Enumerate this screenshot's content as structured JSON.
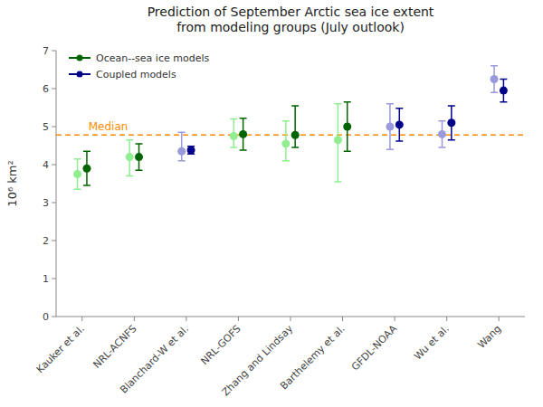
{
  "chart_data": {
    "type": "errorbar",
    "title": "Prediction of September Arctic sea ice extent\nfrom modeling groups (July outlook)",
    "y_label": "10⁶ km²",
    "categories": [
      "Kauker et al.",
      "NRL-ACNFS",
      "Blanchard-W et al.",
      "NRL-GOFS",
      "Zhang and Lindsay",
      "Barthelemy et al.",
      "GFDL-NOAA",
      "Wu et al.",
      "Wang"
    ],
    "ylim": [
      0,
      7
    ],
    "yticks": [
      0,
      1,
      2,
      3,
      4,
      5,
      6,
      7
    ],
    "grid": false,
    "legend": "upper left",
    "marker": "circle",
    "series": [
      {
        "color": "#90EE90",
        "values": [
          3.75,
          4.2,
          null,
          4.75,
          4.55,
          4.65,
          null,
          null,
          null
        ],
        "lower": [
          3.35,
          3.7,
          null,
          4.45,
          4.1,
          3.55,
          null,
          null,
          null
        ],
        "upper": [
          4.15,
          4.65,
          null,
          5.2,
          5.15,
          5.6,
          null,
          null,
          null
        ]
      },
      {
        "color": "#9999DD",
        "values": [
          null,
          null,
          4.35,
          null,
          null,
          null,
          5.0,
          4.8,
          6.25
        ],
        "lower": [
          null,
          null,
          4.1,
          null,
          null,
          null,
          4.4,
          4.45,
          5.9
        ],
        "upper": [
          null,
          null,
          4.85,
          null,
          null,
          null,
          5.6,
          5.15,
          6.6
        ]
      },
      {
        "name": "Ocean--sea ice models",
        "color": "#006400",
        "values": [
          3.9,
          4.2,
          null,
          4.8,
          4.78,
          5.0,
          null,
          null,
          null
        ],
        "lower": [
          3.45,
          3.85,
          null,
          4.38,
          4.45,
          4.35,
          null,
          null,
          null
        ],
        "upper": [
          4.35,
          4.55,
          null,
          5.22,
          5.55,
          5.65,
          null,
          null,
          null
        ]
      },
      {
        "name": "Coupled models",
        "color": "#00008B",
        "values": [
          null,
          null,
          4.38,
          null,
          null,
          null,
          5.05,
          5.1,
          5.95
        ],
        "lower": [
          null,
          null,
          4.28,
          null,
          null,
          null,
          4.62,
          4.65,
          5.65
        ],
        "upper": [
          null,
          null,
          4.48,
          null,
          null,
          null,
          5.48,
          5.55,
          6.25
        ]
      }
    ],
    "annotations": [
      {
        "text": "Median",
        "y": 4.78,
        "color": "#FF8C00",
        "line_style": "dashed"
      }
    ]
  }
}
